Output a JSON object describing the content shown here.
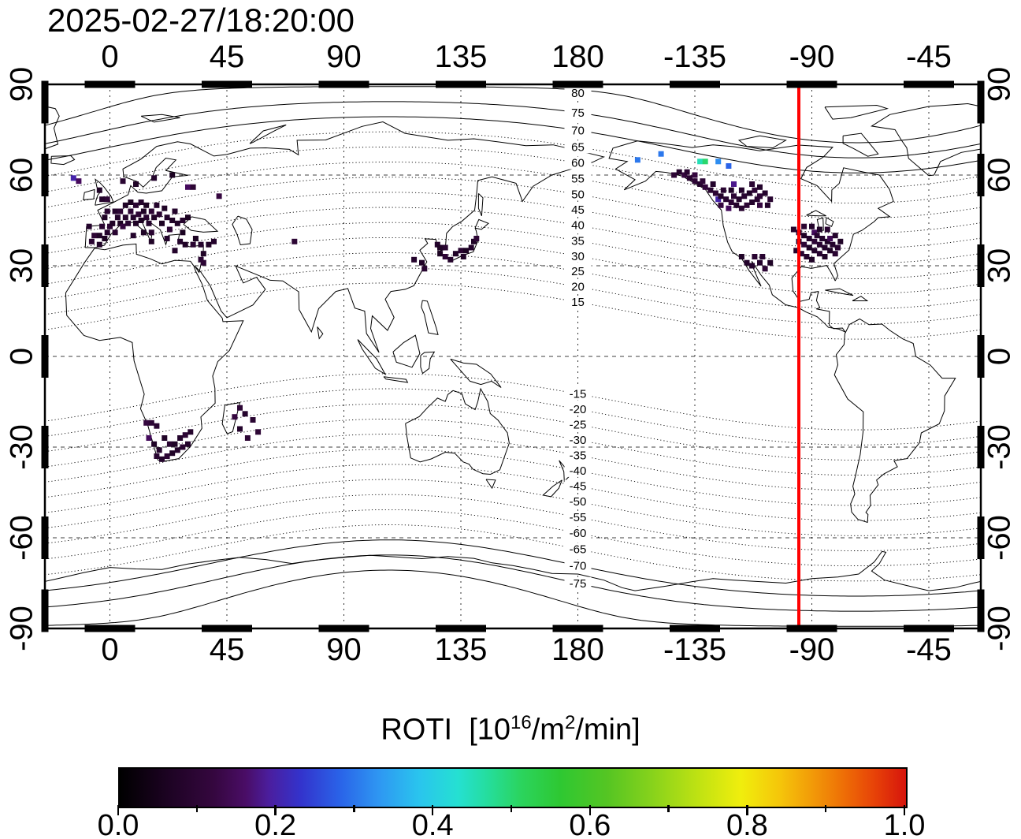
{
  "title": "2025-02-27/18:20:00",
  "contours": {
    "levels": [
      -80,
      -75,
      -70,
      -65,
      -60,
      -55,
      -50,
      -45,
      -40,
      -35,
      -30,
      -25,
      -20,
      -15,
      15,
      20,
      25,
      30,
      35,
      40,
      45,
      50,
      55,
      60,
      65,
      70,
      75,
      80
    ],
    "labels": [
      80,
      75,
      70,
      65,
      60,
      55,
      50,
      45,
      40,
      35,
      30,
      25,
      20,
      15,
      -15,
      -20,
      -25,
      -30,
      -35,
      -40,
      -45,
      -50,
      -55,
      -60,
      -65,
      -70,
      -75
    ],
    "label_lon": 180,
    "pole_lat": 80.7,
    "pole_lon": -72.7
  },
  "red_line": {
    "lon": -95,
    "color": "#ff0000"
  },
  "colorbar": {
    "title_base": "ROTI  [10",
    "title_exp1": "16",
    "title_mid": "/m",
    "title_exp2": "2",
    "title_end": "/min]",
    "tick_labels": [
      "0.0",
      "0.2",
      "0.4",
      "0.6",
      "0.8",
      "1.0"
    ],
    "tick_values": [
      0,
      0.2,
      0.4,
      0.6,
      0.8,
      1
    ],
    "range": [
      0,
      1
    ],
    "stops": [
      [
        0,
        "#000000"
      ],
      [
        0.06,
        "#1c0322"
      ],
      [
        0.12,
        "#35073f"
      ],
      [
        0.16,
        "#4a0d66"
      ],
      [
        0.19,
        "#4b1e9e"
      ],
      [
        0.23,
        "#3333cc"
      ],
      [
        0.28,
        "#2a63e8"
      ],
      [
        0.33,
        "#2e97f2"
      ],
      [
        0.38,
        "#2ac4ee"
      ],
      [
        0.43,
        "#25e0d2"
      ],
      [
        0.47,
        "#25dd9a"
      ],
      [
        0.51,
        "#2bd45e"
      ],
      [
        0.56,
        "#2ec832"
      ],
      [
        0.62,
        "#55c523"
      ],
      [
        0.68,
        "#8ad31b"
      ],
      [
        0.74,
        "#c3e312"
      ],
      [
        0.79,
        "#f0ee0d"
      ],
      [
        0.84,
        "#f5c50a"
      ],
      [
        0.88,
        "#f29b08"
      ],
      [
        0.92,
        "#ee6f06"
      ],
      [
        0.96,
        "#e74208"
      ],
      [
        1,
        "#d6150c"
      ]
    ]
  },
  "chart_data": {
    "type": "scatter",
    "title": "2025-02-27/18:20:00",
    "lon_ticks": [
      0,
      45,
      90,
      135,
      180,
      -135,
      -90,
      -45
    ],
    "lat_ticks": [
      90,
      60,
      30,
      0,
      -30,
      -60,
      -90
    ],
    "lon_min": -25,
    "lon_display_range": [
      -25,
      335
    ],
    "lat_range": [
      -90,
      90
    ],
    "colorbar": {
      "label": "ROTI [10^16/m^2/min]",
      "min": 0.0,
      "max": 1.0,
      "tick_labels": [
        "0.0",
        "0.2",
        "0.4",
        "0.6",
        "0.8",
        "1.0"
      ]
    },
    "magnetic_latitude_contour_labels": [
      80,
      75,
      70,
      65,
      60,
      55,
      50,
      45,
      40,
      35,
      30,
      25,
      20,
      15,
      -15,
      -20,
      -25,
      -30,
      -35,
      -40,
      -45,
      -50,
      -55,
      -60,
      -65,
      -70,
      -75
    ],
    "red_meridian_lon": -95,
    "points_format": [
      "lon_deg",
      "lat_deg",
      "roti"
    ],
    "points": [
      [
        -8,
        43,
        0.08
      ],
      [
        -7,
        38,
        0.09
      ],
      [
        -6,
        40,
        0.1
      ],
      [
        -4,
        37,
        0.07
      ],
      [
        -4,
        40,
        0.07
      ],
      [
        -3,
        43,
        0.09
      ],
      [
        -2,
        39,
        0.06
      ],
      [
        -2,
        46,
        0.07
      ],
      [
        -1,
        41,
        0.08
      ],
      [
        -1,
        48,
        0.09
      ],
      [
        0,
        43,
        0.1
      ],
      [
        1,
        44,
        0.07
      ],
      [
        2,
        41,
        0.09
      ],
      [
        2,
        48,
        0.08
      ],
      [
        3,
        46,
        0.08
      ],
      [
        4,
        44,
        0.06
      ],
      [
        4,
        48,
        0.1
      ],
      [
        5,
        43,
        0.12
      ],
      [
        6,
        46,
        0.08
      ],
      [
        6,
        50,
        0.07
      ],
      [
        7,
        44,
        0.09
      ],
      [
        8,
        48,
        0.1
      ],
      [
        8,
        51,
        0.06
      ],
      [
        9,
        40,
        0.08
      ],
      [
        9,
        46,
        0.08
      ],
      [
        10,
        44,
        0.07
      ],
      [
        10,
        50,
        0.09
      ],
      [
        11,
        47,
        0.1
      ],
      [
        12,
        45,
        0.06
      ],
      [
        12,
        51,
        0.08
      ],
      [
        13,
        41,
        0.07
      ],
      [
        13,
        48,
        0.07
      ],
      [
        14,
        46,
        0.09
      ],
      [
        14,
        50,
        0.06
      ],
      [
        15,
        44,
        0.08
      ],
      [
        16,
        41,
        0.09
      ],
      [
        16,
        48,
        0.1
      ],
      [
        17,
        46,
        0.07
      ],
      [
        18,
        50,
        0.08
      ],
      [
        19,
        47,
        0.09
      ],
      [
        20,
        44,
        0.06
      ],
      [
        21,
        49,
        0.07
      ],
      [
        22,
        46,
        0.08
      ],
      [
        23,
        42,
        0.1
      ],
      [
        24,
        45,
        0.07
      ],
      [
        25,
        48,
        0.08
      ],
      [
        16,
        38,
        0.07
      ],
      [
        22,
        39,
        0.08
      ],
      [
        -3,
        52,
        0.08
      ],
      [
        -1,
        52,
        0.1
      ],
      [
        -4,
        55,
        0.07
      ],
      [
        5,
        58,
        0.09
      ],
      [
        10,
        57,
        0.07
      ],
      [
        17,
        59,
        0.08
      ],
      [
        24,
        60,
        0.06
      ],
      [
        -14,
        59,
        0.2
      ],
      [
        -12,
        58,
        0.15
      ],
      [
        26,
        44,
        0.07
      ],
      [
        28,
        45,
        0.08
      ],
      [
        30,
        46,
        0.06
      ],
      [
        30,
        56,
        0.15
      ],
      [
        32,
        56,
        0.1
      ],
      [
        42,
        53,
        0.12
      ],
      [
        27,
        38,
        0.08
      ],
      [
        29,
        37,
        0.07
      ],
      [
        32,
        37,
        0.09
      ],
      [
        33,
        39,
        0.06
      ],
      [
        35,
        37,
        0.08
      ],
      [
        36,
        34,
        0.07
      ],
      [
        35,
        32,
        0.09
      ],
      [
        36,
        31,
        0.1
      ],
      [
        38,
        37,
        0.07
      ],
      [
        40,
        38,
        0.08
      ],
      [
        28,
        41,
        0.06
      ],
      [
        25,
        35,
        0.08
      ],
      [
        71,
        38,
        0.1
      ],
      [
        117,
        32,
        0.08
      ],
      [
        120,
        31,
        0.07
      ],
      [
        121,
        29,
        0.09
      ],
      [
        126,
        37,
        0.08
      ],
      [
        127,
        36,
        0.07
      ],
      [
        127,
        34,
        0.06
      ],
      [
        129,
        36,
        0.09
      ],
      [
        129,
        33,
        0.1
      ],
      [
        131,
        32,
        0.08
      ],
      [
        133,
        34,
        0.07
      ],
      [
        135,
        35,
        0.09
      ],
      [
        137,
        35,
        0.06
      ],
      [
        136,
        33,
        0.07
      ],
      [
        139,
        36,
        0.08
      ],
      [
        140,
        38,
        0.07
      ],
      [
        141,
        39,
        0.1
      ],
      [
        -143,
        60,
        0.1
      ],
      [
        -141,
        61,
        0.08
      ],
      [
        -139,
        60,
        0.12
      ],
      [
        -138,
        61,
        0.09
      ],
      [
        -137,
        59,
        0.09
      ],
      [
        -135,
        58,
        0.1
      ],
      [
        -135,
        60,
        0.12
      ],
      [
        -133,
        57,
        0.08
      ],
      [
        -132,
        58,
        0.1
      ],
      [
        -131,
        56,
        0.11
      ],
      [
        -129,
        55,
        0.09
      ],
      [
        -128,
        57,
        0.08
      ],
      [
        -127,
        54,
        0.1
      ],
      [
        -126,
        52,
        0.2
      ],
      [
        -125,
        53,
        0.08
      ],
      [
        -125,
        50,
        0.12
      ],
      [
        -124,
        55,
        0.09
      ],
      [
        -123,
        52,
        0.09
      ],
      [
        -122,
        49,
        0.15
      ],
      [
        -121,
        51,
        0.1
      ],
      [
        -121,
        55,
        0.07
      ],
      [
        -120,
        53,
        0.1
      ],
      [
        -120,
        57,
        0.18
      ],
      [
        -119,
        50,
        0.08
      ],
      [
        -118,
        52,
        0.08
      ],
      [
        -117,
        49,
        0.09
      ],
      [
        -117,
        55,
        0.08
      ],
      [
        -116,
        53,
        0.09
      ],
      [
        -115,
        50,
        0.1
      ],
      [
        -114,
        54,
        0.07
      ],
      [
        -113,
        51,
        0.08
      ],
      [
        -113,
        57,
        0.09
      ],
      [
        -112,
        55,
        0.1
      ],
      [
        -111,
        52,
        0.09
      ],
      [
        -110,
        56,
        0.08
      ],
      [
        -110,
        53,
        0.1
      ],
      [
        -110,
        50,
        0.12
      ],
      [
        -108,
        54,
        0.08
      ],
      [
        -107,
        50,
        0.08
      ],
      [
        -106,
        52,
        0.09
      ],
      [
        -157,
        65,
        0.3
      ],
      [
        -148,
        67,
        0.3
      ],
      [
        -133,
        64.5,
        0.45
      ],
      [
        -131,
        64.5,
        0.5
      ],
      [
        -126,
        64.5,
        0.32
      ],
      [
        -122,
        63,
        0.28
      ],
      [
        -97,
        42,
        0.08
      ],
      [
        -96,
        35,
        0.08
      ],
      [
        -95,
        41,
        0.09
      ],
      [
        -95,
        38,
        0.08
      ],
      [
        -94,
        34,
        0.09
      ],
      [
        -93,
        43,
        0.09
      ],
      [
        -93,
        40,
        0.07
      ],
      [
        -93,
        37,
        0.1
      ],
      [
        -92,
        33,
        0.08
      ],
      [
        -91,
        39,
        0.08
      ],
      [
        -91,
        36,
        0.07
      ],
      [
        -90,
        43,
        0.08
      ],
      [
        -90,
        32,
        0.07
      ],
      [
        -89,
        41,
        0.15
      ],
      [
        -89,
        38,
        0.1
      ],
      [
        -89,
        35,
        0.08
      ],
      [
        -88,
        40,
        0.09
      ],
      [
        -87,
        42,
        0.07
      ],
      [
        -87,
        37,
        0.09
      ],
      [
        -87,
        34,
        0.09
      ],
      [
        -86,
        39,
        0.08
      ],
      [
        -85,
        36,
        0.08
      ],
      [
        -85,
        33,
        0.07
      ],
      [
        -84,
        42,
        0.09
      ],
      [
        -84,
        38,
        0.07
      ],
      [
        -83,
        39,
        0.14
      ],
      [
        -83,
        35,
        0.07
      ],
      [
        -82,
        37,
        0.08
      ],
      [
        -81,
        34,
        0.09
      ],
      [
        -81,
        40,
        0.08
      ],
      [
        -80,
        36,
        0.09
      ],
      [
        -79,
        38,
        0.07
      ],
      [
        -117,
        33,
        0.07
      ],
      [
        -115,
        31,
        0.08
      ],
      [
        -113,
        30,
        0.08
      ],
      [
        -112,
        33,
        0.09
      ],
      [
        -110,
        31,
        0.08
      ],
      [
        -109,
        33,
        0.09
      ],
      [
        -108,
        29,
        0.1
      ],
      [
        -106,
        31,
        0.07
      ],
      [
        14,
        -22,
        0.12
      ],
      [
        16,
        -22,
        0.1
      ],
      [
        15,
        -27,
        0.15
      ],
      [
        17,
        -29,
        0.07
      ],
      [
        18,
        -23,
        0.09
      ],
      [
        18,
        -33,
        0.09
      ],
      [
        19,
        -31,
        0.08
      ],
      [
        20,
        -34,
        0.08
      ],
      [
        21,
        -27,
        0.07
      ],
      [
        22,
        -33,
        0.1
      ],
      [
        23,
        -29,
        0.09
      ],
      [
        24,
        -32,
        0.07
      ],
      [
        25,
        -29,
        0.07
      ],
      [
        26,
        -31,
        0.08
      ],
      [
        27,
        -27,
        0.08
      ],
      [
        28,
        -30,
        0.09
      ],
      [
        29,
        -26,
        0.1
      ],
      [
        30,
        -29,
        0.08
      ],
      [
        31,
        -25,
        0.08
      ],
      [
        48,
        -20,
        0.12
      ],
      [
        50,
        -17,
        0.1
      ],
      [
        50,
        -24,
        0.08
      ],
      [
        52,
        -19,
        0.08
      ],
      [
        53,
        -27,
        0.1
      ],
      [
        55,
        -21,
        0.09
      ],
      [
        57,
        -25,
        0.1
      ]
    ]
  }
}
